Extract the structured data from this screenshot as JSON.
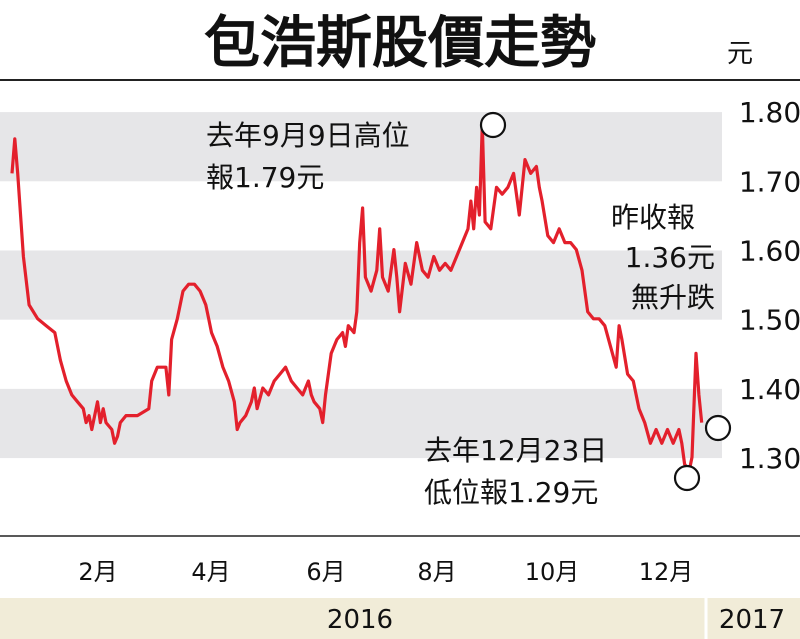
{
  "chart_data": {
    "type": "line",
    "title": "包浩斯股價走勢",
    "unit": "元",
    "ylim": [
      1.25,
      1.85
    ],
    "yticks": [
      "1.80",
      "1.70",
      "1.60",
      "1.50",
      "1.40",
      "1.30"
    ],
    "xticks": [
      "2月",
      "4月",
      "6月",
      "8月",
      "10月",
      "12月"
    ],
    "years": [
      "2016",
      "2017"
    ],
    "series": [
      {
        "color": "#e3202c",
        "points": [
          [
            0.0,
            1.72
          ],
          [
            0.05,
            1.77
          ],
          [
            0.1,
            1.72
          ],
          [
            0.2,
            1.6
          ],
          [
            0.3,
            1.53
          ],
          [
            0.45,
            1.51
          ],
          [
            0.6,
            1.5
          ],
          [
            0.75,
            1.49
          ],
          [
            0.85,
            1.45
          ],
          [
            0.95,
            1.42
          ],
          [
            1.05,
            1.4
          ],
          [
            1.15,
            1.39
          ],
          [
            1.25,
            1.38
          ],
          [
            1.3,
            1.36
          ],
          [
            1.35,
            1.37
          ],
          [
            1.4,
            1.35
          ],
          [
            1.5,
            1.39
          ],
          [
            1.55,
            1.36
          ],
          [
            1.6,
            1.38
          ],
          [
            1.65,
            1.36
          ],
          [
            1.75,
            1.35
          ],
          [
            1.8,
            1.33
          ],
          [
            1.85,
            1.34
          ],
          [
            1.9,
            1.36
          ],
          [
            2.0,
            1.37
          ],
          [
            2.2,
            1.37
          ],
          [
            2.4,
            1.38
          ],
          [
            2.45,
            1.42
          ],
          [
            2.55,
            1.44
          ],
          [
            2.7,
            1.44
          ],
          [
            2.75,
            1.4
          ],
          [
            2.8,
            1.48
          ],
          [
            2.9,
            1.51
          ],
          [
            3.0,
            1.55
          ],
          [
            3.1,
            1.56
          ],
          [
            3.2,
            1.56
          ],
          [
            3.3,
            1.55
          ],
          [
            3.4,
            1.53
          ],
          [
            3.45,
            1.51
          ],
          [
            3.5,
            1.49
          ],
          [
            3.6,
            1.47
          ],
          [
            3.7,
            1.44
          ],
          [
            3.8,
            1.42
          ],
          [
            3.9,
            1.39
          ],
          [
            3.95,
            1.35
          ],
          [
            4.0,
            1.36
          ],
          [
            4.1,
            1.37
          ],
          [
            4.2,
            1.39
          ],
          [
            4.25,
            1.41
          ],
          [
            4.3,
            1.38
          ],
          [
            4.4,
            1.41
          ],
          [
            4.5,
            1.4
          ],
          [
            4.6,
            1.42
          ],
          [
            4.7,
            1.43
          ],
          [
            4.8,
            1.44
          ],
          [
            4.9,
            1.42
          ],
          [
            5.0,
            1.41
          ],
          [
            5.1,
            1.4
          ],
          [
            5.2,
            1.42
          ],
          [
            5.25,
            1.4
          ],
          [
            5.3,
            1.39
          ],
          [
            5.4,
            1.38
          ],
          [
            5.45,
            1.36
          ],
          [
            5.5,
            1.4
          ],
          [
            5.6,
            1.46
          ],
          [
            5.7,
            1.48
          ],
          [
            5.8,
            1.49
          ],
          [
            5.85,
            1.47
          ],
          [
            5.9,
            1.5
          ],
          [
            6.0,
            1.49
          ],
          [
            6.05,
            1.52
          ],
          [
            6.1,
            1.62
          ],
          [
            6.15,
            1.67
          ],
          [
            6.2,
            1.57
          ],
          [
            6.3,
            1.55
          ],
          [
            6.4,
            1.58
          ],
          [
            6.45,
            1.64
          ],
          [
            6.5,
            1.57
          ],
          [
            6.6,
            1.55
          ],
          [
            6.7,
            1.61
          ],
          [
            6.75,
            1.57
          ],
          [
            6.8,
            1.52
          ],
          [
            6.9,
            1.59
          ],
          [
            7.0,
            1.56
          ],
          [
            7.1,
            1.62
          ],
          [
            7.2,
            1.58
          ],
          [
            7.3,
            1.57
          ],
          [
            7.4,
            1.6
          ],
          [
            7.5,
            1.58
          ],
          [
            7.6,
            1.59
          ],
          [
            7.7,
            1.58
          ],
          [
            7.8,
            1.6
          ],
          [
            7.9,
            1.62
          ],
          [
            8.0,
            1.64
          ],
          [
            8.05,
            1.68
          ],
          [
            8.1,
            1.64
          ],
          [
            8.15,
            1.7
          ],
          [
            8.2,
            1.66
          ],
          [
            8.25,
            1.79
          ],
          [
            8.3,
            1.65
          ],
          [
            8.4,
            1.64
          ],
          [
            8.5,
            1.7
          ],
          [
            8.6,
            1.69
          ],
          [
            8.7,
            1.7
          ],
          [
            8.8,
            1.72
          ],
          [
            8.9,
            1.66
          ],
          [
            9.0,
            1.74
          ],
          [
            9.1,
            1.72
          ],
          [
            9.2,
            1.73
          ],
          [
            9.25,
            1.7
          ],
          [
            9.3,
            1.68
          ],
          [
            9.4,
            1.63
          ],
          [
            9.5,
            1.62
          ],
          [
            9.6,
            1.64
          ],
          [
            9.7,
            1.62
          ],
          [
            9.8,
            1.62
          ],
          [
            9.9,
            1.61
          ],
          [
            10.0,
            1.58
          ],
          [
            10.1,
            1.52
          ],
          [
            10.2,
            1.51
          ],
          [
            10.3,
            1.51
          ],
          [
            10.4,
            1.5
          ],
          [
            10.5,
            1.47
          ],
          [
            10.6,
            1.44
          ],
          [
            10.65,
            1.5
          ],
          [
            10.7,
            1.48
          ],
          [
            10.8,
            1.43
          ],
          [
            10.9,
            1.42
          ],
          [
            11.0,
            1.38
          ],
          [
            11.1,
            1.36
          ],
          [
            11.2,
            1.33
          ],
          [
            11.3,
            1.35
          ],
          [
            11.4,
            1.33
          ],
          [
            11.5,
            1.35
          ],
          [
            11.6,
            1.33
          ],
          [
            11.7,
            1.35
          ],
          [
            11.75,
            1.33
          ],
          [
            11.8,
            1.3
          ],
          [
            11.88,
            1.29
          ],
          [
            11.93,
            1.31
          ],
          [
            12.0,
            1.46
          ],
          [
            12.05,
            1.4
          ],
          [
            12.1,
            1.36
          ]
        ]
      }
    ],
    "annotations": [
      {
        "lines": [
          "去年9月9日高位",
          "報1.79元"
        ]
      },
      {
        "lines": [
          "昨收報",
          "1.36元",
          "無升跌"
        ]
      },
      {
        "lines": [
          "去年12月23日",
          "低位報1.29元"
        ]
      }
    ]
  }
}
